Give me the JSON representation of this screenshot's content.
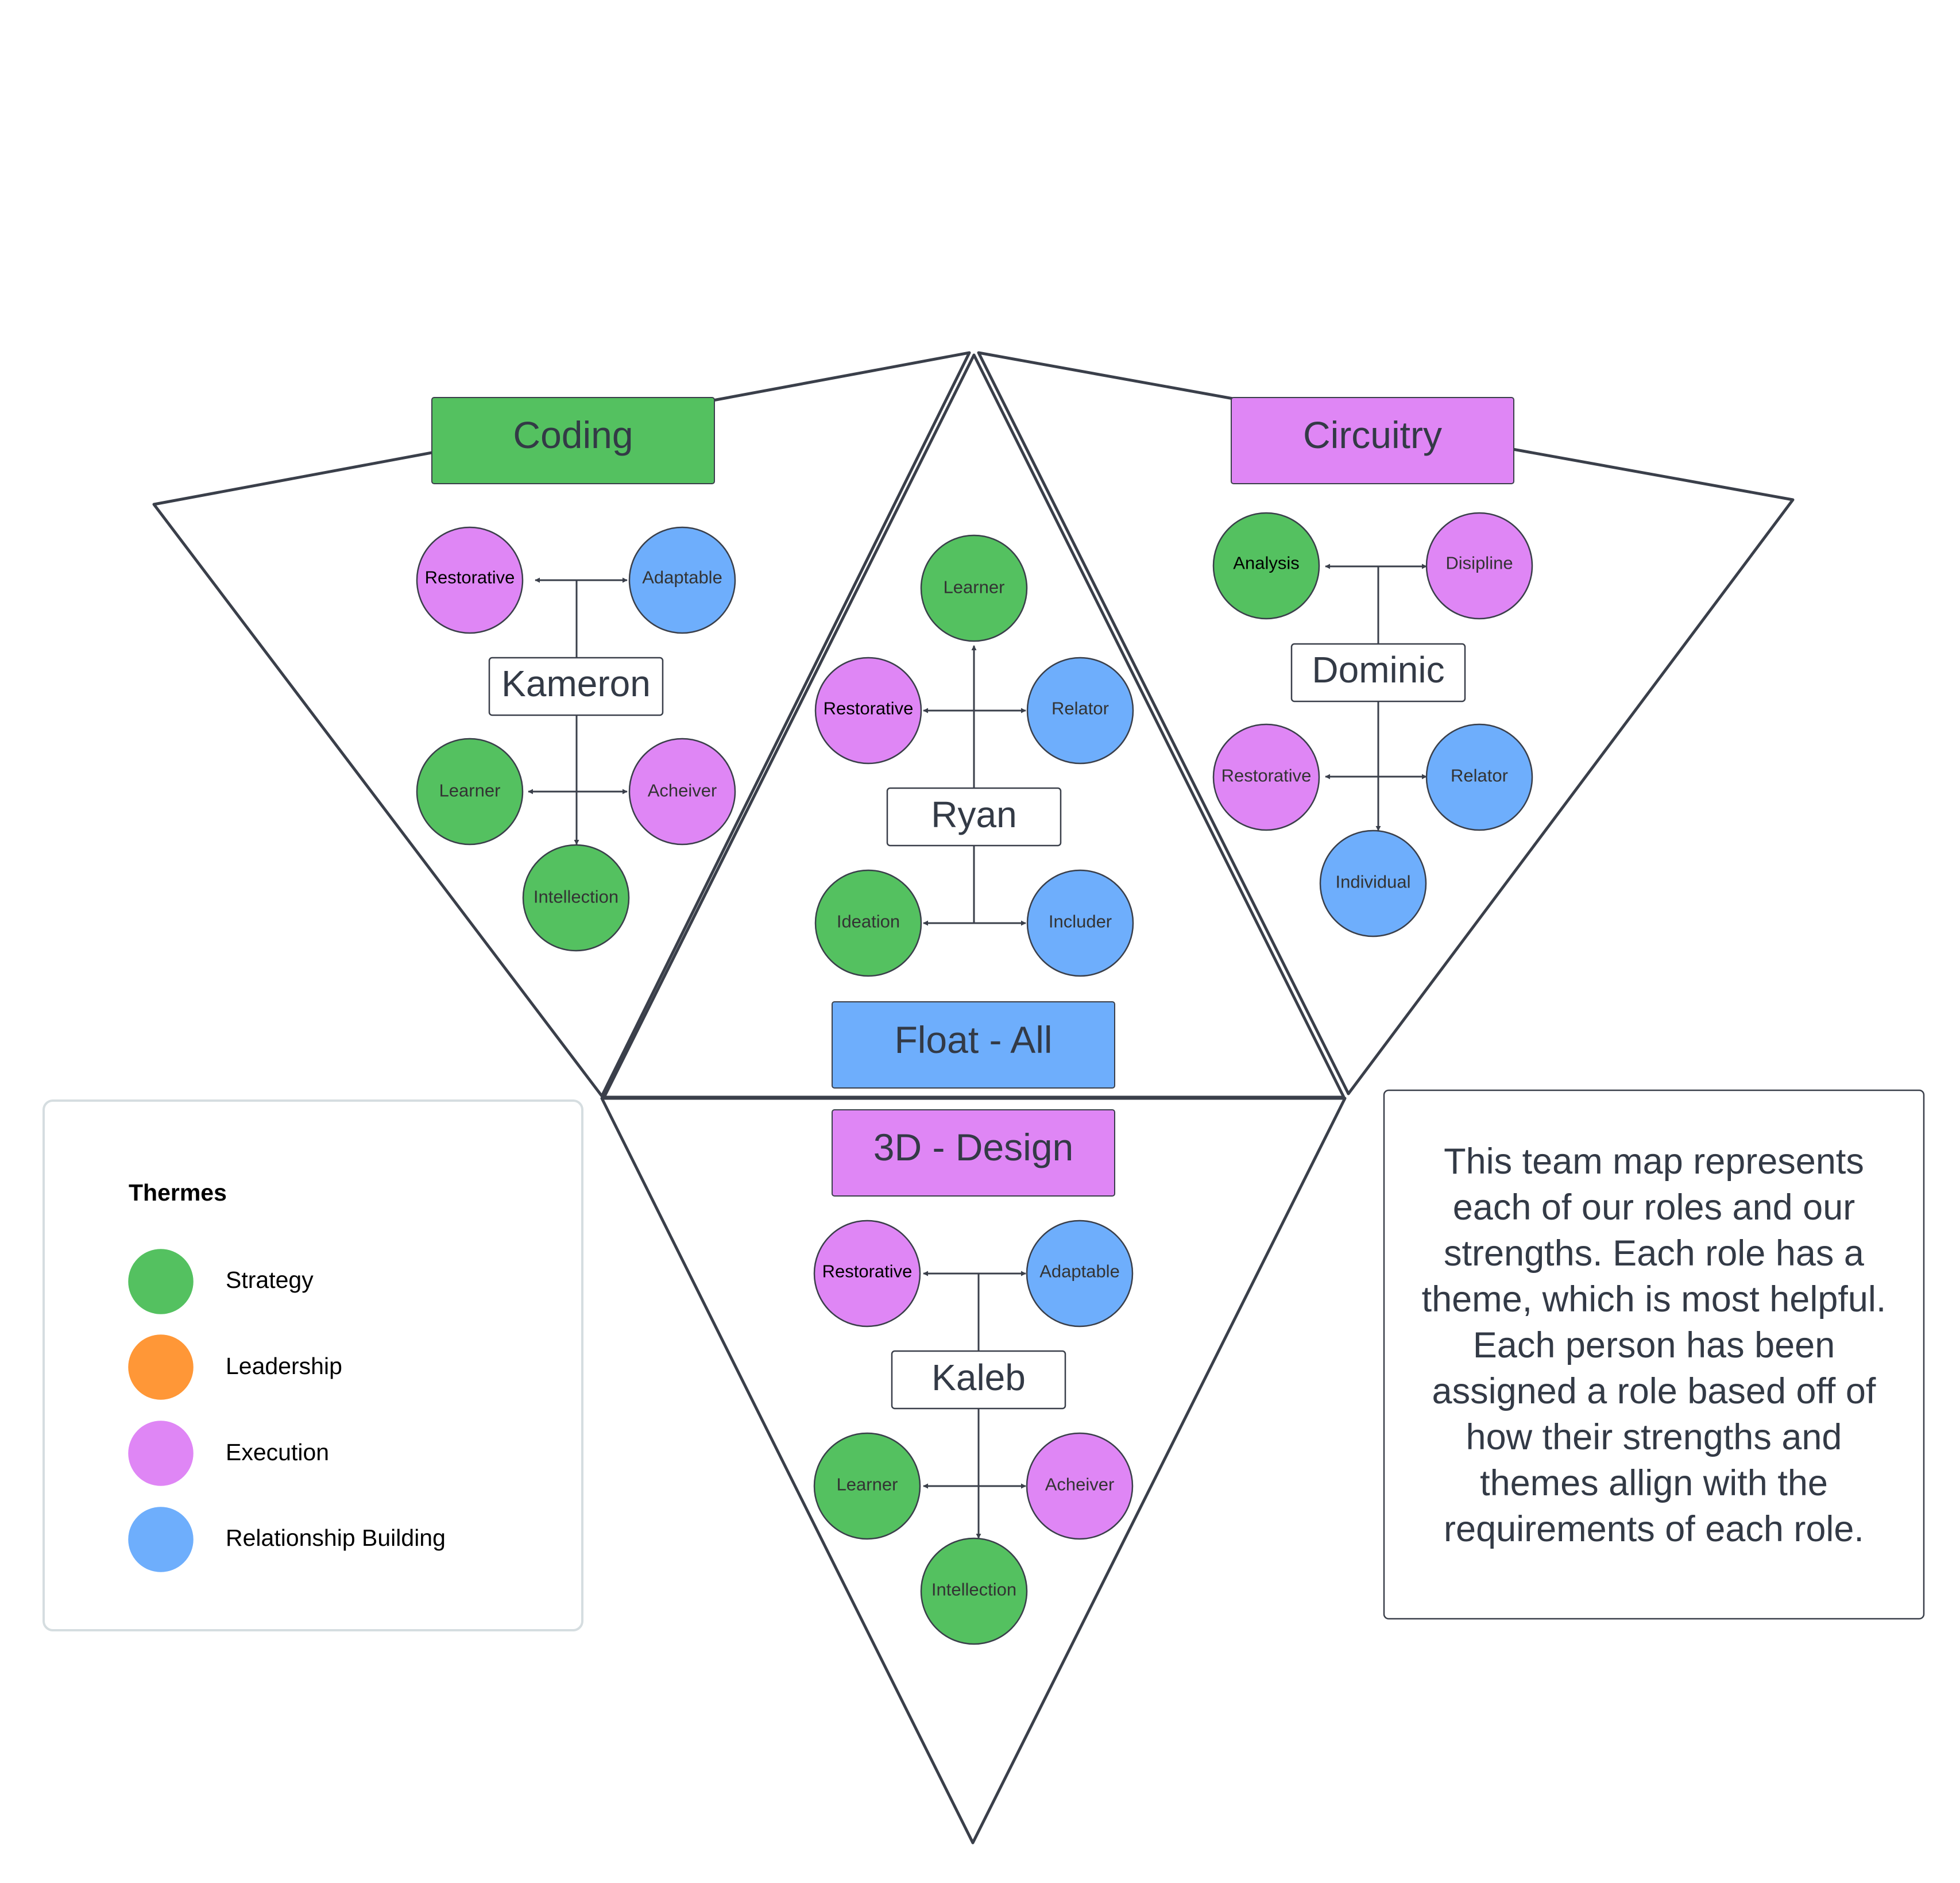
{
  "colors": {
    "strategy": "#54c160",
    "leadership": "#ff9737",
    "execution": "#df86f5",
    "relationship": "#6eaefc",
    "line": "#3a3f4a"
  },
  "roles": {
    "coding": {
      "label": "Coding",
      "theme": "strategy"
    },
    "circuitry": {
      "label": "Circuitry",
      "theme": "execution"
    },
    "float": {
      "label": "Float - All",
      "theme": "relationship"
    },
    "design": {
      "label": "3D - Design",
      "theme": "execution"
    }
  },
  "people": {
    "kameron": {
      "name": "Kameron",
      "strengths": [
        {
          "label": "Restorative",
          "theme": "execution"
        },
        {
          "label": "Adaptable",
          "theme": "relationship"
        },
        {
          "label": "Learner",
          "theme": "strategy"
        },
        {
          "label": "Acheiver",
          "theme": "execution"
        },
        {
          "label": "Intellection",
          "theme": "strategy"
        }
      ]
    },
    "ryan": {
      "name": "Ryan",
      "strengths": [
        {
          "label": "Learner",
          "theme": "strategy"
        },
        {
          "label": "Restorative",
          "theme": "execution"
        },
        {
          "label": "Relator",
          "theme": "relationship"
        },
        {
          "label": "Ideation",
          "theme": "strategy"
        },
        {
          "label": "Includer",
          "theme": "relationship"
        }
      ]
    },
    "dominic": {
      "name": "Dominic",
      "strengths": [
        {
          "label": "Analysis",
          "theme": "strategy"
        },
        {
          "label": "Disipline",
          "theme": "execution"
        },
        {
          "label": "Restorative",
          "theme": "execution"
        },
        {
          "label": "Relator",
          "theme": "relationship"
        },
        {
          "label": "Individual",
          "theme": "relationship"
        }
      ]
    },
    "kaleb": {
      "name": "Kaleb",
      "strengths": [
        {
          "label": "Restorative",
          "theme": "execution"
        },
        {
          "label": "Adaptable",
          "theme": "relationship"
        },
        {
          "label": "Learner",
          "theme": "strategy"
        },
        {
          "label": "Acheiver",
          "theme": "execution"
        },
        {
          "label": "Intellection",
          "theme": "strategy"
        }
      ]
    }
  },
  "legend": {
    "title": "Thermes",
    "items": [
      {
        "label": "Strategy",
        "theme": "strategy"
      },
      {
        "label": "Leadership",
        "theme": "leadership"
      },
      {
        "label": "Execution",
        "theme": "execution"
      },
      {
        "label": "Relationship Building",
        "theme": "relationship"
      }
    ]
  },
  "description": {
    "lines": [
      "This team map represents",
      "each of our roles and our",
      "strengths. Each role has a",
      "theme, which is most helpful.",
      "Each person has been",
      "assigned a role based off of",
      "how their strengths and",
      "themes allign with the",
      "requirements of each role."
    ]
  }
}
